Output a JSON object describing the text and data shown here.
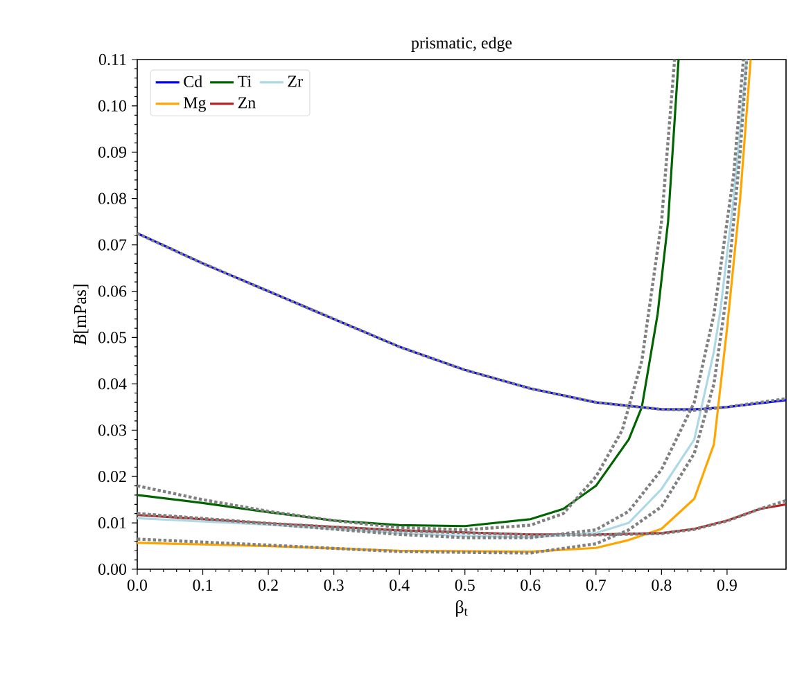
{
  "chart_data": {
    "type": "line",
    "title": "prismatic, edge",
    "xlabel": "β$_{t}$",
    "ylabel": "*B*[mPas]",
    "xlim": [
      0,
      0.99
    ],
    "ylim": [
      0,
      0.11
    ],
    "xticks": [
      {
        "value": 0,
        "label": "0.0"
      },
      {
        "value": 0.1,
        "label": "0.1"
      },
      {
        "value": 0.2,
        "label": "0.2"
      },
      {
        "value": 0.3,
        "label": "0.3"
      },
      {
        "value": 0.4,
        "label": "0.4"
      },
      {
        "value": 0.5,
        "label": "0.5"
      },
      {
        "value": 0.6,
        "label": "0.6"
      },
      {
        "value": 0.7,
        "label": "0.7"
      },
      {
        "value": 0.8,
        "label": "0.8"
      },
      {
        "value": 0.9,
        "label": "0.9"
      }
    ],
    "yticks": [
      {
        "value": 0,
        "label": "0.00"
      },
      {
        "value": 0.01,
        "label": "0.01"
      },
      {
        "value": 0.02,
        "label": "0.02"
      },
      {
        "value": 0.03,
        "label": "0.03"
      },
      {
        "value": 0.04,
        "label": "0.04"
      },
      {
        "value": 0.05,
        "label": "0.05"
      },
      {
        "value": 0.06,
        "label": "0.06"
      },
      {
        "value": 0.07,
        "label": "0.07"
      },
      {
        "value": 0.08,
        "label": "0.08"
      },
      {
        "value": 0.09,
        "label": "0.09"
      },
      {
        "value": 0.1,
        "label": "0.10"
      },
      {
        "value": 0.11,
        "label": "0.11"
      }
    ],
    "grid": false,
    "legend": "top left",
    "marker": "none",
    "series": [
      {
        "name": "Cd",
        "color": "#0000ff",
        "line_style": "solid",
        "x": [
          0,
          0.1,
          0.2,
          0.3,
          0.4,
          0.5,
          0.6,
          0.7,
          0.8,
          0.85,
          0.9,
          0.99
        ],
        "values": [
          0.0725,
          0.066,
          0.06,
          0.054,
          0.048,
          0.043,
          0.039,
          0.036,
          0.0345,
          0.0345,
          0.035,
          0.0365
        ]
      },
      {
        "name": "Mg",
        "color": "#ffa500",
        "line_style": "solid",
        "x": [
          0,
          0.2,
          0.4,
          0.6,
          0.7,
          0.75,
          0.8,
          0.85,
          0.88,
          0.9,
          0.92,
          0.936
        ],
        "values": [
          0.0057,
          0.005,
          0.004,
          0.0038,
          0.0046,
          0.0063,
          0.0087,
          0.0152,
          0.027,
          0.052,
          0.08,
          0.11
        ]
      },
      {
        "name": "Ti",
        "color": "#006400",
        "line_style": "solid",
        "x": [
          0,
          0.1,
          0.2,
          0.3,
          0.4,
          0.5,
          0.6,
          0.65,
          0.7,
          0.75,
          0.77,
          0.794,
          0.81,
          0.826
        ],
        "values": [
          0.016,
          0.0143,
          0.0123,
          0.0105,
          0.0095,
          0.0093,
          0.0108,
          0.013,
          0.018,
          0.028,
          0.035,
          0.055,
          0.075,
          0.11
        ]
      },
      {
        "name": "Zn",
        "color": "#b22222",
        "line_style": "solid",
        "x": [
          0,
          0.2,
          0.4,
          0.6,
          0.7,
          0.8,
          0.85,
          0.9,
          0.95,
          0.99
        ],
        "values": [
          0.0117,
          0.0099,
          0.0084,
          0.0075,
          0.0075,
          0.0078,
          0.0087,
          0.0105,
          0.013,
          0.014
        ]
      },
      {
        "name": "Zr",
        "color": "#add8e6",
        "line_style": "solid",
        "x": [
          0,
          0.2,
          0.4,
          0.5,
          0.6,
          0.7,
          0.75,
          0.8,
          0.85,
          0.88,
          0.89,
          0.91,
          0.93
        ],
        "values": [
          0.011,
          0.0096,
          0.0078,
          0.0072,
          0.0069,
          0.0078,
          0.01,
          0.0173,
          0.028,
          0.047,
          0.056,
          0.08,
          0.11
        ]
      },
      {
        "color": "#808080",
        "line_style": "dotted",
        "x": [
          0,
          0.1,
          0.2,
          0.3,
          0.4,
          0.5,
          0.6,
          0.7,
          0.8,
          0.85,
          0.9,
          0.99
        ],
        "values": [
          0.0725,
          0.066,
          0.06,
          0.054,
          0.048,
          0.043,
          0.039,
          0.036,
          0.0345,
          0.0343,
          0.035,
          0.0368
        ]
      },
      {
        "color": "#808080",
        "line_style": "dotted",
        "x": [
          0,
          0.2,
          0.4,
          0.6,
          0.7,
          0.75,
          0.8,
          0.85,
          0.88,
          0.9,
          0.92,
          0.93
        ],
        "values": [
          0.0065,
          0.0052,
          0.0038,
          0.0035,
          0.0055,
          0.0085,
          0.0135,
          0.025,
          0.04,
          0.06,
          0.09,
          0.11
        ]
      },
      {
        "color": "#808080",
        "line_style": "dotted",
        "x": [
          0,
          0.1,
          0.2,
          0.3,
          0.4,
          0.5,
          0.6,
          0.65,
          0.7,
          0.74,
          0.77,
          0.8,
          0.82
        ],
        "values": [
          0.018,
          0.015,
          0.0125,
          0.0105,
          0.009,
          0.0085,
          0.0095,
          0.012,
          0.02,
          0.03,
          0.045,
          0.075,
          0.11
        ]
      },
      {
        "color": "#808080",
        "line_style": "dotted",
        "x": [
          0,
          0.2,
          0.4,
          0.6,
          0.7,
          0.8,
          0.85,
          0.9,
          0.95,
          0.99
        ],
        "values": [
          0.012,
          0.0099,
          0.0083,
          0.0074,
          0.0074,
          0.0077,
          0.0086,
          0.0104,
          0.013,
          0.0148
        ]
      },
      {
        "color": "#808080",
        "line_style": "dotted",
        "x": [
          0,
          0.2,
          0.4,
          0.5,
          0.6,
          0.7,
          0.75,
          0.8,
          0.85,
          0.88,
          0.91,
          0.925
        ],
        "values": [
          0.012,
          0.0098,
          0.0075,
          0.0068,
          0.0068,
          0.0085,
          0.0125,
          0.0215,
          0.036,
          0.055,
          0.085,
          0.11
        ]
      }
    ]
  }
}
